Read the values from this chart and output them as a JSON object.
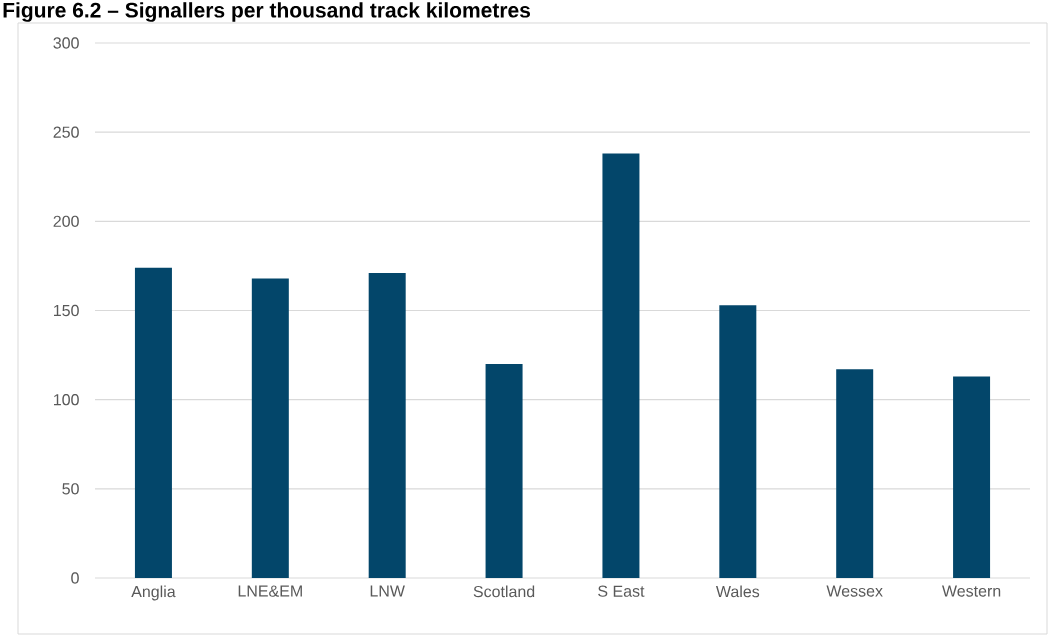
{
  "chart_data": {
    "type": "bar",
    "title": "Figure 6.2 – Signallers per thousand track kilometres",
    "categories": [
      "Anglia",
      "LNE&EM",
      "LNW",
      "Scotland",
      "S East",
      "Wales",
      "Wessex",
      "Western"
    ],
    "values": [
      174,
      168,
      171,
      120,
      238,
      153,
      117,
      113
    ],
    "color": "#03466a",
    "ylim": [
      0,
      300
    ],
    "yticks": [
      0,
      50,
      100,
      150,
      200,
      250,
      300
    ],
    "grid": "y"
  }
}
